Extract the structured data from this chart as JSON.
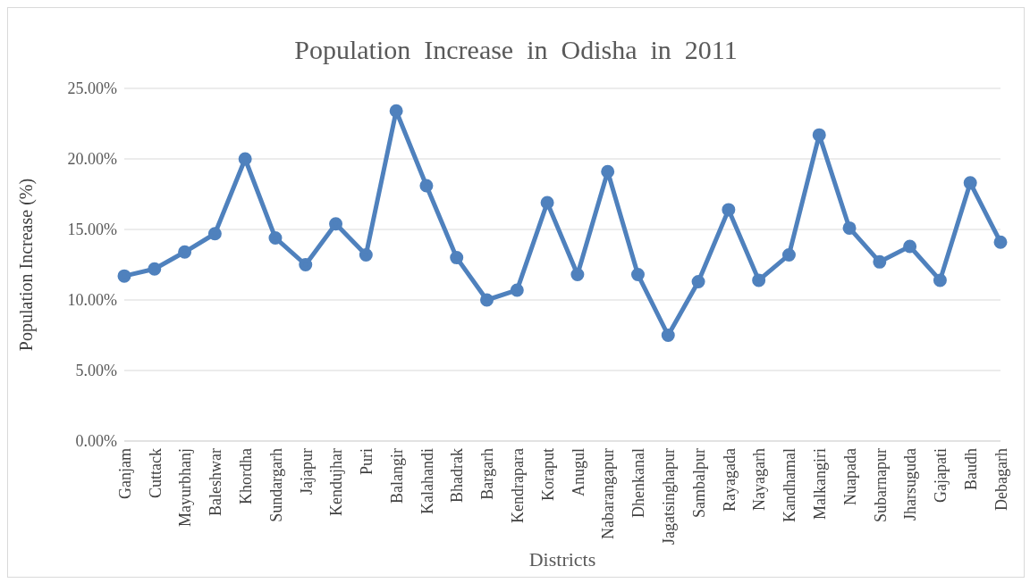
{
  "chart_data": {
    "type": "line",
    "title": "Population  Increase  in  Odisha  in  2011",
    "xlabel": "Districts",
    "ylabel": "Population Increase  (%)",
    "categories": [
      "Ganjam",
      "Cuttack",
      "Mayurbhanj",
      "Baleshwar",
      "Khordha",
      "Sundargarh",
      "Jajapur",
      "Kendujhar",
      "Puri",
      "Balangir",
      "Kalahandi",
      "Bhadrak",
      "Bargarh",
      "Kendrapara",
      "Koraput",
      "Anugul",
      "Nabarangapur",
      "Dhenkanal",
      "Jagatsinghapur",
      "Sambalpur",
      "Rayagada",
      "Nayagarh",
      "Kandhamal",
      "Malkangiri",
      "Nuapada",
      "Subarnapur",
      "Jharsuguda",
      "Gajapati",
      "Baudh",
      "Debagarh"
    ],
    "series": [
      {
        "color": "#4f81bd",
        "values": [
          11.7,
          12.2,
          13.4,
          14.7,
          20.0,
          14.4,
          12.5,
          15.4,
          13.2,
          23.4,
          18.1,
          13.0,
          10.0,
          10.7,
          16.9,
          11.8,
          19.1,
          11.8,
          7.5,
          11.3,
          16.4,
          11.4,
          13.2,
          21.7,
          15.1,
          12.7,
          13.8,
          11.4,
          18.3,
          14.1
        ]
      }
    ],
    "ylim": [
      0,
      25
    ],
    "yticks": [
      {
        "value": 0,
        "label": "0.00%"
      },
      {
        "value": 5,
        "label": "5.00%"
      },
      {
        "value": 10,
        "label": "10.00%"
      },
      {
        "value": 15,
        "label": "15.00%"
      },
      {
        "value": 20,
        "label": "20.00%"
      },
      {
        "value": 25,
        "label": "25.00%"
      }
    ],
    "grid": "y",
    "marker": "circle",
    "line_style": "solid",
    "legend": false
  }
}
